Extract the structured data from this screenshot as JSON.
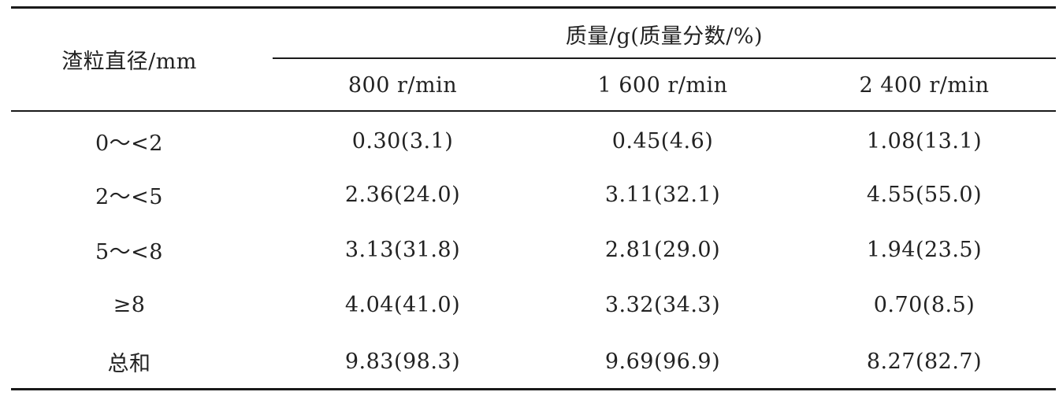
{
  "table": {
    "stub_header": "渣粒直径/mm",
    "group_header": "质量/g(质量分数/%)",
    "columns": [
      "800 r/min",
      "1 600 r/min",
      "2 400 r/min"
    ],
    "rows": [
      {
        "label": "0～<2",
        "values": [
          "0.30(3.1)",
          "0.45(4.6)",
          "1.08(13.1)"
        ]
      },
      {
        "label": "2～<5",
        "values": [
          "2.36(24.0)",
          "3.11(32.1)",
          "4.55(55.0)"
        ]
      },
      {
        "label": "5～<8",
        "values": [
          "3.13(31.8)",
          "2.81(29.0)",
          "1.94(23.5)"
        ]
      },
      {
        "label": "≥8",
        "values": [
          "4.04(41.0)",
          "3.32(34.3)",
          "0.70(8.5)"
        ]
      },
      {
        "label": "总和",
        "values": [
          "9.83(98.3)",
          "9.69(96.9)",
          "8.27(82.7)"
        ]
      }
    ]
  }
}
